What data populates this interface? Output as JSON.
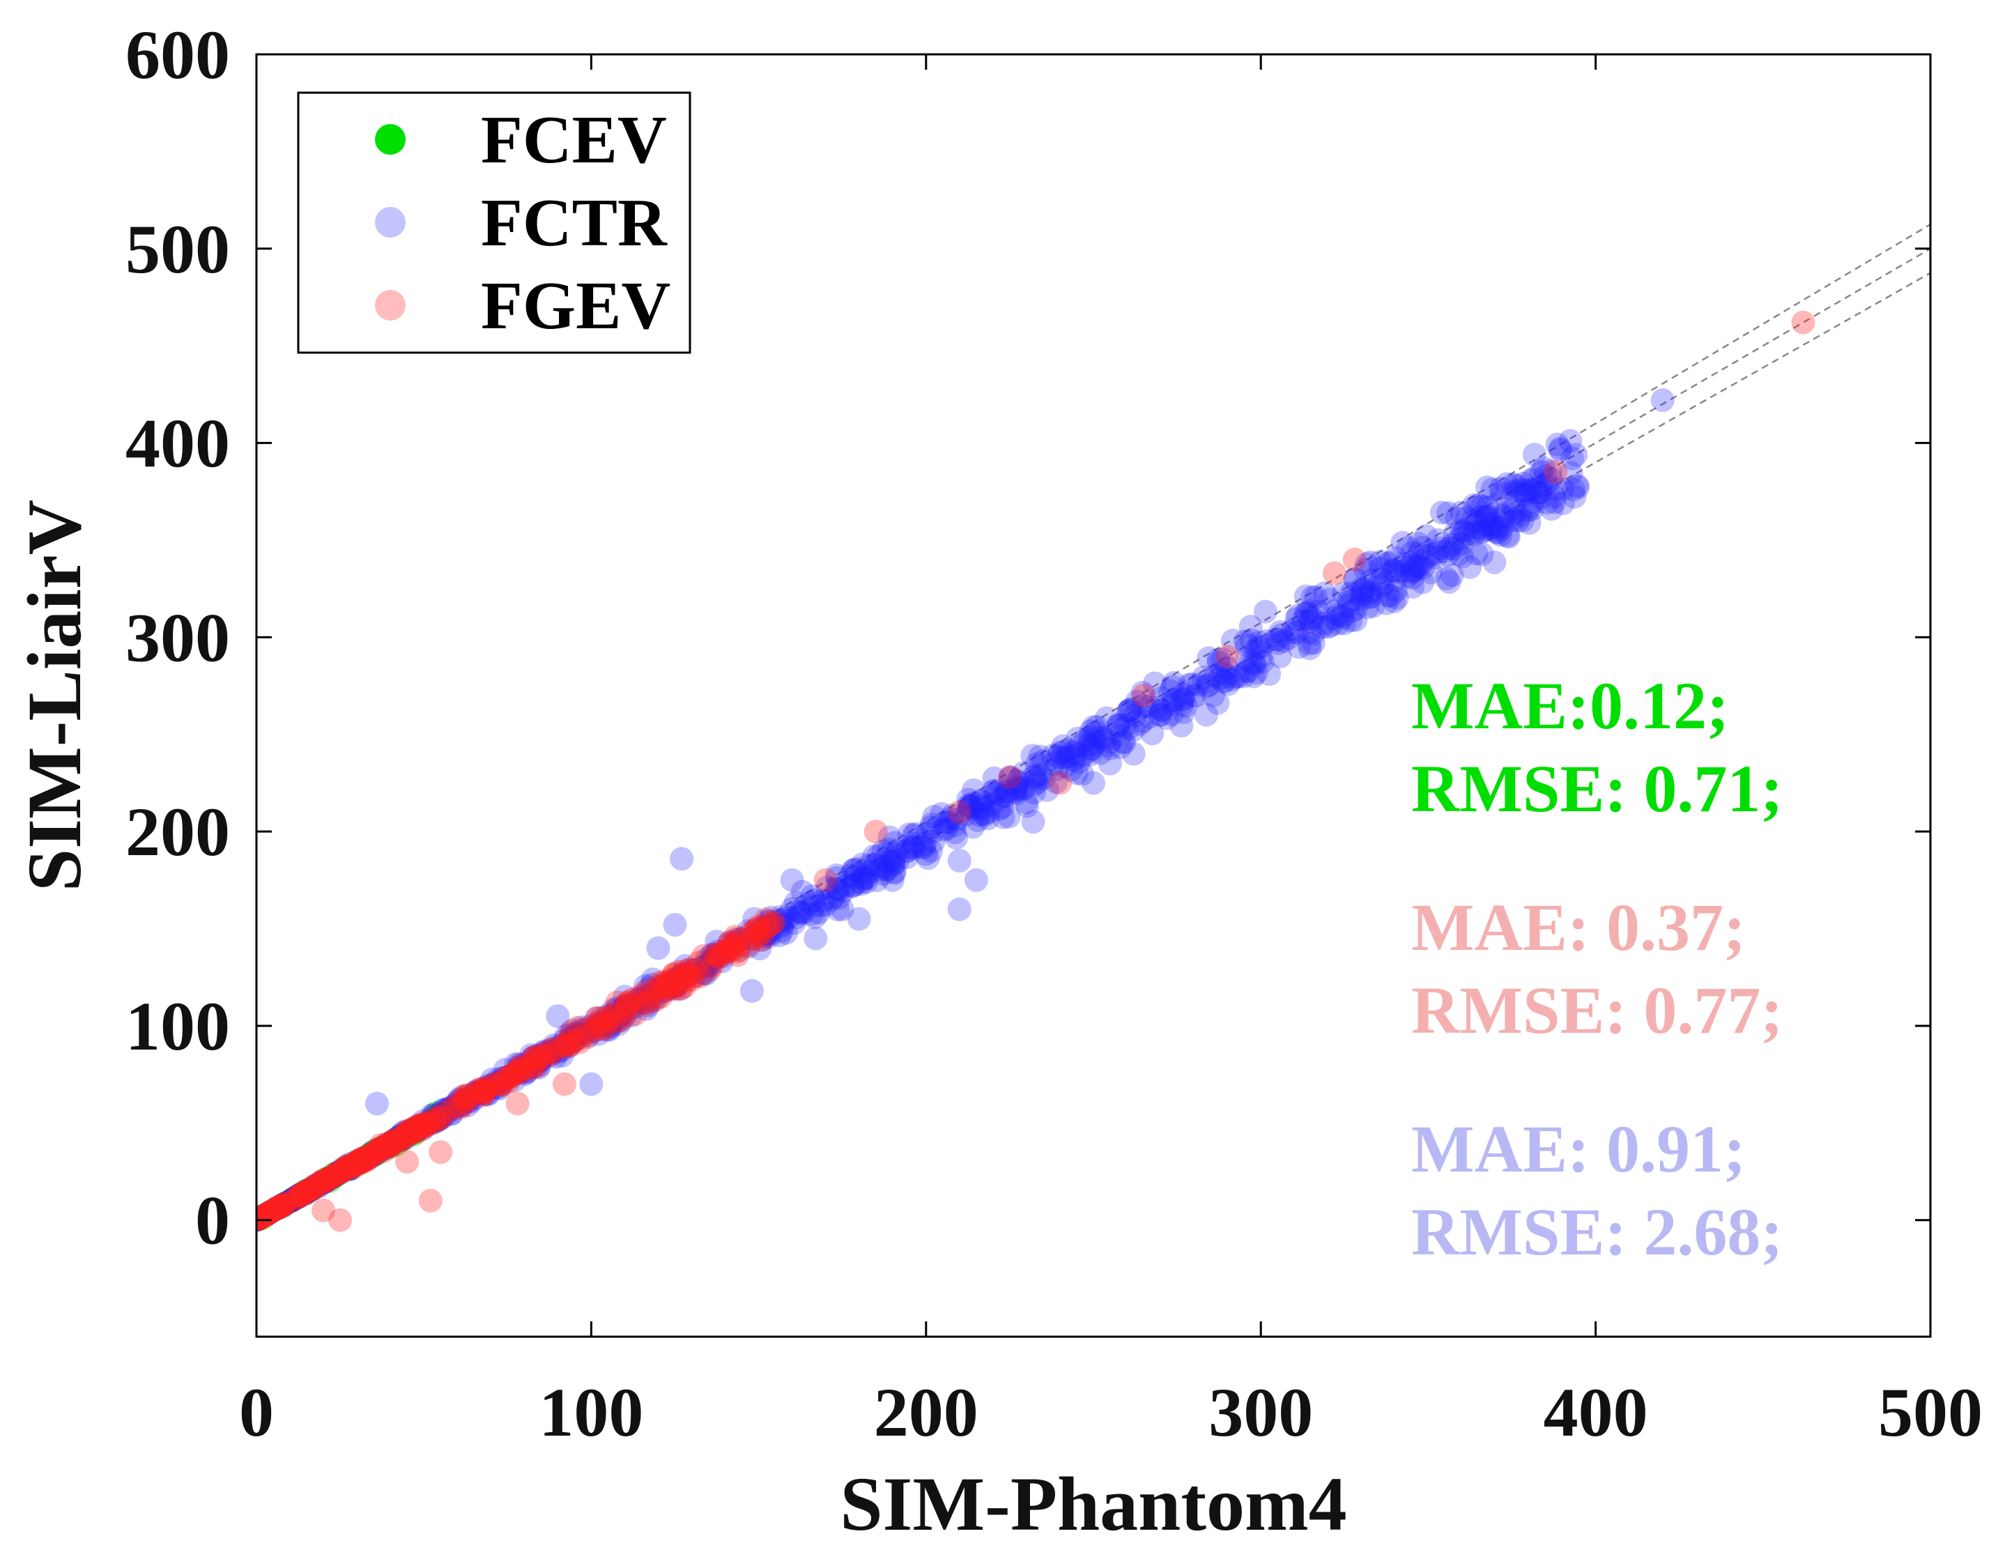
{
  "chart_data": {
    "type": "scatter",
    "title": "",
    "xlabel": "SIM-Phantom4",
    "ylabel": "SIM-LiairV",
    "xlim": [
      0,
      500
    ],
    "ylim": [
      -60,
      600
    ],
    "xticks": [
      0,
      100,
      200,
      300,
      400,
      500
    ],
    "yticks": [
      0,
      100,
      200,
      300,
      400,
      500,
      600
    ],
    "grid": false,
    "legend_position": "top-left",
    "reference_lines": [
      {
        "name": "identity",
        "slope": 1.0,
        "style": "dashed",
        "color": "#888888"
      },
      {
        "name": "upper-bound",
        "slope": 1.025,
        "style": "dashed",
        "color": "#888888"
      },
      {
        "name": "lower-bound",
        "slope": 0.975,
        "style": "dashed",
        "color": "#888888"
      }
    ],
    "series": [
      {
        "name": "FCEV",
        "color": "#00e000",
        "legend_color": "#00e000",
        "opacity": 0.35,
        "dense_band": {
          "x_range": [
            0,
            55
          ],
          "spread": 0.04
        },
        "points": [
          [
            2,
            1
          ],
          [
            8,
            7
          ],
          [
            15,
            14
          ],
          [
            22,
            20
          ],
          [
            28,
            26
          ],
          [
            35,
            33
          ],
          [
            42,
            39
          ],
          [
            47,
            44
          ],
          [
            52,
            50
          ]
        ]
      },
      {
        "name": "FCTR",
        "color": "#2020ff",
        "legend_color": "#c4c4ff",
        "opacity": 0.28,
        "dense_band": {
          "x_range": [
            0,
            395
          ],
          "spread": 0.05
        },
        "points": [
          [
            36,
            60
          ],
          [
            100,
            70
          ],
          [
            120,
            140
          ],
          [
            127,
            186
          ],
          [
            125,
            152
          ],
          [
            110,
            115
          ],
          [
            90,
            105
          ],
          [
            148,
            118
          ],
          [
            160,
            175
          ],
          [
            167,
            145
          ],
          [
            175,
            160
          ],
          [
            180,
            155
          ],
          [
            190,
            175
          ],
          [
            210,
            185
          ],
          [
            210,
            160
          ],
          [
            215,
            175
          ],
          [
            230,
            215
          ],
          [
            232,
            205
          ],
          [
            245,
            230
          ],
          [
            250,
            225
          ],
          [
            255,
            235
          ],
          [
            262,
            240
          ],
          [
            270,
            260
          ],
          [
            280,
            270
          ],
          [
            290,
            280
          ],
          [
            300,
            295
          ],
          [
            315,
            310
          ],
          [
            330,
            322
          ],
          [
            345,
            338
          ],
          [
            360,
            355
          ],
          [
            372,
            374
          ],
          [
            385,
            383
          ],
          [
            393,
            392
          ],
          [
            420,
            422
          ]
        ]
      },
      {
        "name": "FGEV",
        "color": "#ff2020",
        "legend_color": "#ffbcbc",
        "opacity": 0.32,
        "dense_band": {
          "x_range": [
            0,
            155
          ],
          "spread": 0.04
        },
        "points": [
          [
            25,
            0
          ],
          [
            20,
            5
          ],
          [
            45,
            30
          ],
          [
            52,
            10
          ],
          [
            55,
            35
          ],
          [
            78,
            60
          ],
          [
            92,
            70
          ],
          [
            170,
            175
          ],
          [
            185,
            200
          ],
          [
            210,
            210
          ],
          [
            225,
            228
          ],
          [
            240,
            225
          ],
          [
            265,
            270
          ],
          [
            290,
            290
          ],
          [
            322,
            333
          ],
          [
            328,
            340
          ],
          [
            388,
            385
          ],
          [
            462,
            462
          ]
        ]
      }
    ],
    "annotations": [
      {
        "lines": [
          "MAE:0.12;",
          "RMSE: 0.71;"
        ],
        "color": "#00dd00"
      },
      {
        "lines": [
          "MAE: 0.37;",
          "RMSE: 0.77;"
        ],
        "color": "#f4b0b0"
      },
      {
        "lines": [
          "MAE: 0.91;",
          "RMSE: 2.68;"
        ],
        "color": "#b8b8f4"
      }
    ]
  }
}
